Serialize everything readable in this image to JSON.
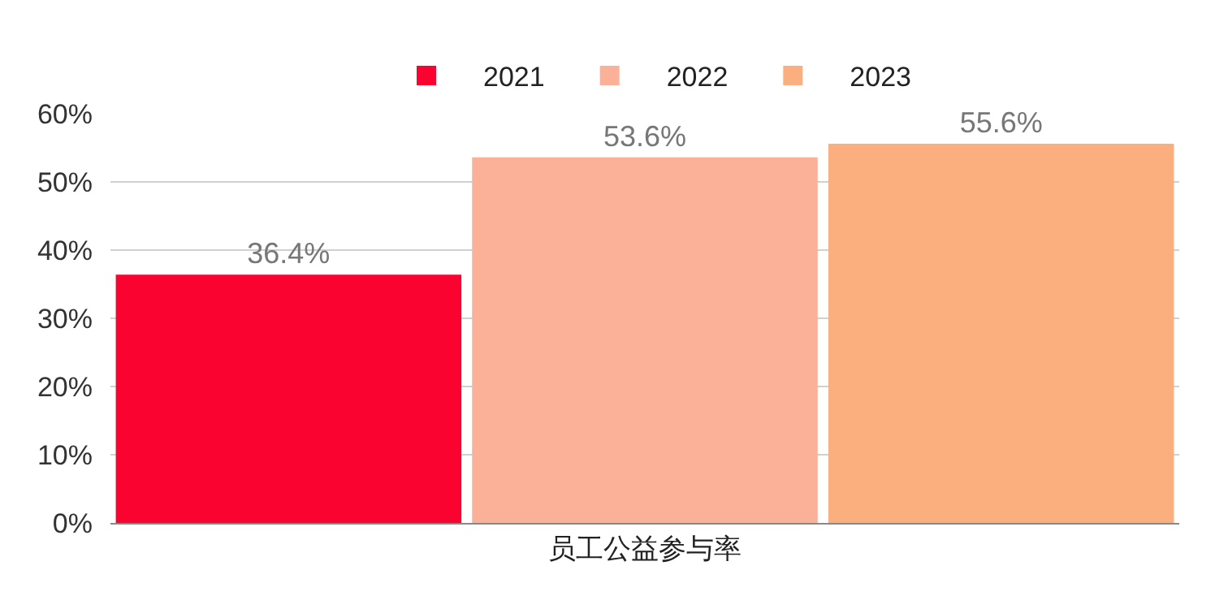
{
  "chart_data": {
    "type": "bar",
    "categories": [
      "员工公益参与率"
    ],
    "series": [
      {
        "name": "2021",
        "color": "#fa0330",
        "values": [
          36.4
        ],
        "value_labels": [
          "36.4%"
        ]
      },
      {
        "name": "2022",
        "color": "#fbb098",
        "values": [
          53.6
        ],
        "value_labels": [
          "53.6%"
        ]
      },
      {
        "name": "2023",
        "color": "#fcaf7e",
        "values": [
          55.6
        ],
        "value_labels": [
          "55.6%"
        ]
      }
    ],
    "ylim": [
      0,
      60
    ],
    "yticks": [
      {
        "value": 0,
        "label": "0%"
      },
      {
        "value": 10,
        "label": "10%"
      },
      {
        "value": 20,
        "label": "20%"
      },
      {
        "value": 30,
        "label": "30%"
      },
      {
        "value": 40,
        "label": "40%"
      },
      {
        "value": 50,
        "label": "50%"
      },
      {
        "value": 60,
        "label": "60%"
      }
    ],
    "grid": "y",
    "legend": "top"
  }
}
